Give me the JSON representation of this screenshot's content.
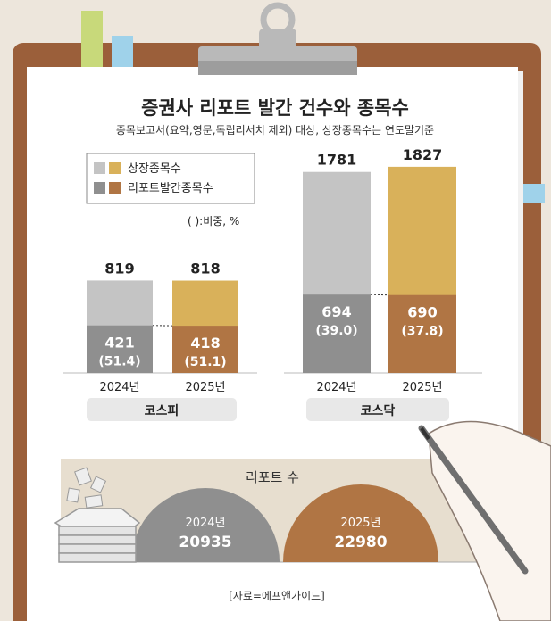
{
  "title": "증권사 리포트 발간 건수와 종목수",
  "subtitle": "종목보고서(요약,영문,독립리서치 제외) 대상, 상장종목수는 연도말기준",
  "legend": {
    "items": [
      {
        "label": "상장종목수",
        "colors": [
          "#c4c4c4",
          "#d9b15a"
        ]
      },
      {
        "label": "리포트발간종목수",
        "colors": [
          "#8f8f8f",
          "#b07544"
        ]
      }
    ],
    "note": "( ):비중, %"
  },
  "colors": {
    "listed_2024": "#c4c4c4",
    "report_2024": "#8f8f8f",
    "listed_2025": "#d9b15a",
    "report_2025": "#b07544",
    "paper": "#ffffff",
    "clipboard": "#9b5f3a",
    "clip": "#b9b9b9",
    "band": "#e7decf",
    "title_bg": "#e8e8e8"
  },
  "chart_data": [
    {
      "type": "bar",
      "group_label": "코스피",
      "categories": [
        "2024년",
        "2025년"
      ],
      "series": [
        {
          "name": "상장종목수",
          "values": [
            819,
            818
          ]
        },
        {
          "name": "리포트발간종목수",
          "values": [
            421,
            418
          ]
        }
      ],
      "share_labels": [
        "(51.4)",
        "(51.1)"
      ],
      "share_values": [
        51.4,
        51.1
      ]
    },
    {
      "type": "bar",
      "group_label": "코스닥",
      "categories": [
        "2024년",
        "2025년"
      ],
      "series": [
        {
          "name": "상장종목수",
          "values": [
            1781,
            1827
          ]
        },
        {
          "name": "리포트발간종목수",
          "values": [
            694,
            690
          ]
        }
      ],
      "share_labels": [
        "(39.0)",
        "(37.8)"
      ],
      "share_values": [
        39.0,
        37.8
      ]
    },
    {
      "type": "pie",
      "title": "리포트 수",
      "categories": [
        "2024년",
        "2025년"
      ],
      "values": [
        20935,
        22980
      ],
      "value_labels": [
        "20935",
        "22980"
      ]
    }
  ],
  "source": "[자료=에프앤가이드]"
}
